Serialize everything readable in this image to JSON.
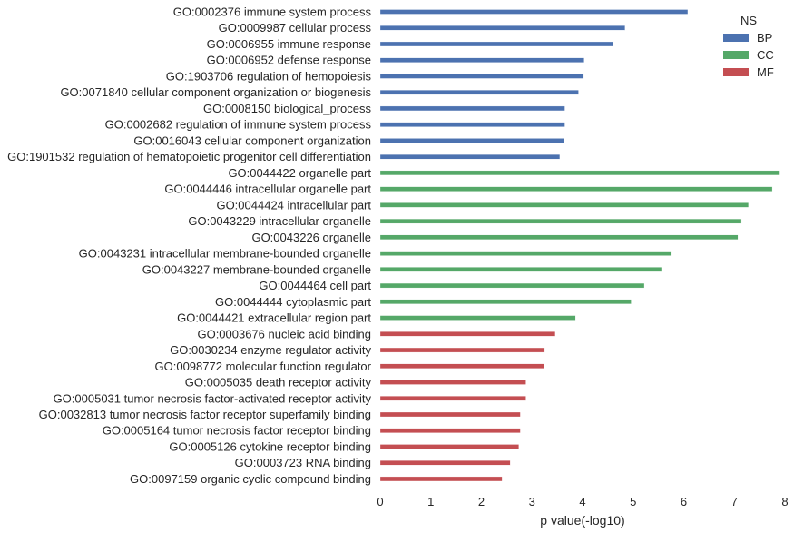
{
  "chart_data": {
    "type": "bar",
    "orientation": "horizontal",
    "xlabel": "p value(-log10)",
    "ylabel": "",
    "xlim": [
      0,
      8
    ],
    "xticks": [
      "0",
      "1",
      "2",
      "3",
      "4",
      "5",
      "6",
      "7",
      "8"
    ],
    "grid": false,
    "legend": {
      "title": "NS",
      "placement": "top-right",
      "entries": [
        {
          "name": "BP",
          "color": "#4c72b0"
        },
        {
          "name": "CC",
          "color": "#55a868"
        },
        {
          "name": "MF",
          "color": "#c44e52"
        }
      ]
    },
    "bars": [
      {
        "label": "GO:0002376 immune system process",
        "value": 6.08,
        "group": "BP"
      },
      {
        "label": "GO:0009987 cellular process",
        "value": 4.84,
        "group": "BP"
      },
      {
        "label": "GO:0006955 immune response",
        "value": 4.61,
        "group": "BP"
      },
      {
        "label": "GO:0006952 defense response",
        "value": 4.03,
        "group": "BP"
      },
      {
        "label": "GO:1903706 regulation of hemopoiesis",
        "value": 4.02,
        "group": "BP"
      },
      {
        "label": "GO:0071840 cellular component organization or biogenesis",
        "value": 3.92,
        "group": "BP"
      },
      {
        "label": "GO:0008150 biological_process",
        "value": 3.65,
        "group": "BP"
      },
      {
        "label": "GO:0002682 regulation of immune system process",
        "value": 3.65,
        "group": "BP"
      },
      {
        "label": "GO:0016043 cellular component organization",
        "value": 3.64,
        "group": "BP"
      },
      {
        "label": "GO:1901532 regulation of hematopoietic progenitor cell differentiation",
        "value": 3.55,
        "group": "BP"
      },
      {
        "label": "GO:0044422 organelle part",
        "value": 7.9,
        "group": "CC"
      },
      {
        "label": "GO:0044446 intracellular organelle part",
        "value": 7.75,
        "group": "CC"
      },
      {
        "label": "GO:0044424 intracellular part",
        "value": 7.28,
        "group": "CC"
      },
      {
        "label": "GO:0043229 intracellular organelle",
        "value": 7.14,
        "group": "CC"
      },
      {
        "label": "GO:0043226 organelle",
        "value": 7.07,
        "group": "CC"
      },
      {
        "label": "GO:0043231 intracellular membrane-bounded organelle",
        "value": 5.76,
        "group": "CC"
      },
      {
        "label": "GO:0043227 membrane-bounded organelle",
        "value": 5.56,
        "group": "CC"
      },
      {
        "label": "GO:0044464 cell part",
        "value": 5.22,
        "group": "CC"
      },
      {
        "label": "GO:0044444 cytoplasmic part",
        "value": 4.96,
        "group": "CC"
      },
      {
        "label": "GO:0044421 extracellular region part",
        "value": 3.86,
        "group": "CC"
      },
      {
        "label": "GO:0003676 nucleic acid binding",
        "value": 3.46,
        "group": "MF"
      },
      {
        "label": "GO:0030234 enzyme regulator activity",
        "value": 3.25,
        "group": "MF"
      },
      {
        "label": "GO:0098772 molecular function regulator",
        "value": 3.24,
        "group": "MF"
      },
      {
        "label": "GO:0005035 death receptor activity",
        "value": 2.88,
        "group": "MF"
      },
      {
        "label": "GO:0005031 tumor necrosis factor-activated receptor activity",
        "value": 2.88,
        "group": "MF"
      },
      {
        "label": "GO:0032813 tumor necrosis factor receptor superfamily binding",
        "value": 2.77,
        "group": "MF"
      },
      {
        "label": "GO:0005164 tumor necrosis factor receptor binding",
        "value": 2.77,
        "group": "MF"
      },
      {
        "label": "GO:0005126 cytokine receptor binding",
        "value": 2.74,
        "group": "MF"
      },
      {
        "label": "GO:0003723 RNA binding",
        "value": 2.57,
        "group": "MF"
      },
      {
        "label": "GO:0097159 organic cyclic compound binding",
        "value": 2.41,
        "group": "MF"
      }
    ]
  }
}
